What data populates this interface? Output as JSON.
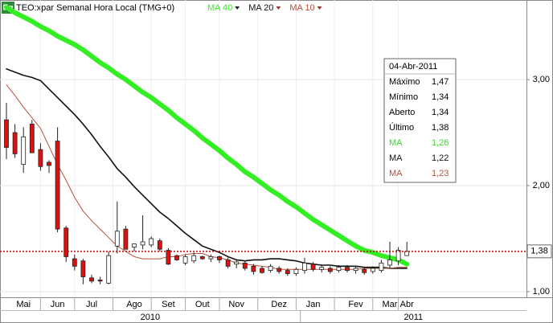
{
  "chart_data": {
    "type": "candlestick",
    "title": "TEO:xpar Semanal Hora Local (TMG+0)",
    "icon": "Eq",
    "categories": [
      null,
      null,
      "Mai",
      null,
      null,
      null,
      "Jun",
      null,
      null,
      null,
      "Jul",
      null,
      null,
      null,
      null,
      "Ago",
      null,
      null,
      null,
      "Set",
      null,
      null,
      null,
      "Out",
      null,
      null,
      null,
      "Nov",
      null,
      null,
      null,
      null,
      "Dez",
      null,
      null,
      null,
      "Jan",
      null,
      null,
      null,
      null,
      "Fev",
      null,
      null,
      null,
      "Mar",
      null,
      "Abr"
    ],
    "x_groups": [
      {
        "label": "2010",
        "from": 0,
        "to": 34
      },
      {
        "label": "2011",
        "from": 35,
        "to": 47
      }
    ],
    "open": [
      2.62,
      2.5,
      2.2,
      2.58,
      2.34,
      2.22,
      2.42,
      1.6,
      1.31,
      1.29,
      1.13,
      1.11,
      1.08,
      1.43,
      1.59,
      1.42,
      1.44,
      1.44,
      1.48,
      1.39,
      1.34,
      1.27,
      1.29,
      1.33,
      1.31,
      1.33,
      1.3,
      1.26,
      1.27,
      1.24,
      1.22,
      1.2,
      1.22,
      1.2,
      1.17,
      1.2,
      1.26,
      1.21,
      1.22,
      1.2,
      1.23,
      1.2,
      1.21,
      1.19,
      1.2,
      1.25,
      1.29,
      1.34
    ],
    "high": [
      2.78,
      2.58,
      2.55,
      2.62,
      2.4,
      2.24,
      2.55,
      1.62,
      1.35,
      1.31,
      1.16,
      1.14,
      1.38,
      1.85,
      1.62,
      1.45,
      1.72,
      1.52,
      1.5,
      1.41,
      1.35,
      1.35,
      1.37,
      1.34,
      1.35,
      1.34,
      1.32,
      1.3,
      1.29,
      1.26,
      1.24,
      1.26,
      1.24,
      1.22,
      1.23,
      1.32,
      1.28,
      1.25,
      1.24,
      1.25,
      1.25,
      1.24,
      1.23,
      1.24,
      1.3,
      1.47,
      1.42,
      1.47
    ],
    "low": [
      2.25,
      2.26,
      2.12,
      2.32,
      2.14,
      2.12,
      1.56,
      1.28,
      1.2,
      1.07,
      1.08,
      1.07,
      1.07,
      1.36,
      1.4,
      1.38,
      1.4,
      1.42,
      1.38,
      1.25,
      1.29,
      1.25,
      1.27,
      1.3,
      1.28,
      1.27,
      1.22,
      1.22,
      1.2,
      1.16,
      1.17,
      1.18,
      1.17,
      1.15,
      1.15,
      1.17,
      1.19,
      1.18,
      1.17,
      1.18,
      1.18,
      1.17,
      1.16,
      1.17,
      1.18,
      1.22,
      1.25,
      1.34
    ],
    "close": [
      2.36,
      2.3,
      2.46,
      2.31,
      2.18,
      2.19,
      1.59,
      1.33,
      1.24,
      1.14,
      1.1,
      1.1,
      1.34,
      1.57,
      1.4,
      1.45,
      1.47,
      1.5,
      1.4,
      1.26,
      1.3,
      1.33,
      1.34,
      1.31,
      1.33,
      1.3,
      1.24,
      1.28,
      1.22,
      1.19,
      1.18,
      1.24,
      1.19,
      1.17,
      1.21,
      1.27,
      1.21,
      1.23,
      1.19,
      1.23,
      1.2,
      1.22,
      1.18,
      1.22,
      1.27,
      1.3,
      1.39,
      1.38
    ],
    "up_color": "#ffffff",
    "down_color": "#e01010",
    "series": [
      {
        "name": "MA 40",
        "color": "#33ee22",
        "width": 6,
        "values": [
          3.68,
          3.63,
          3.59,
          3.55,
          3.5,
          3.46,
          3.41,
          3.37,
          3.33,
          3.28,
          3.22,
          3.16,
          3.11,
          3.05,
          3.0,
          2.94,
          2.88,
          2.83,
          2.77,
          2.71,
          2.64,
          2.58,
          2.52,
          2.45,
          2.39,
          2.33,
          2.26,
          2.2,
          2.13,
          2.08,
          2.02,
          1.96,
          1.91,
          1.85,
          1.8,
          1.74,
          1.68,
          1.63,
          1.58,
          1.53,
          1.48,
          1.43,
          1.39,
          1.37,
          1.34,
          1.32,
          1.3,
          1.26
        ]
      },
      {
        "name": "MA 20",
        "color": "#111111",
        "width": 1.6,
        "values": [
          3.1,
          3.07,
          3.04,
          3.02,
          2.99,
          2.91,
          2.83,
          2.75,
          2.67,
          2.58,
          2.48,
          2.37,
          2.27,
          2.16,
          2.08,
          1.99,
          1.91,
          1.83,
          1.75,
          1.69,
          1.62,
          1.55,
          1.49,
          1.43,
          1.4,
          1.37,
          1.33,
          1.3,
          1.29,
          1.3,
          1.3,
          1.31,
          1.31,
          1.3,
          1.29,
          1.27,
          1.26,
          1.25,
          1.25,
          1.24,
          1.24,
          1.24,
          1.23,
          1.23,
          1.23,
          1.22,
          1.22,
          1.22
        ]
      },
      {
        "name": "MA 10",
        "color": "#b5503c",
        "width": 1,
        "values": [
          2.95,
          2.85,
          2.74,
          2.64,
          2.54,
          2.37,
          2.2,
          2.05,
          1.89,
          1.76,
          1.67,
          1.59,
          1.51,
          1.43,
          1.38,
          1.33,
          1.31,
          1.31,
          1.31,
          1.33,
          1.33,
          1.35,
          1.36,
          1.36,
          1.33,
          1.32,
          1.3,
          1.27,
          1.26,
          1.25,
          1.24,
          1.23,
          1.21,
          1.21,
          1.21,
          1.21,
          1.21,
          1.21,
          1.21,
          1.21,
          1.21,
          1.21,
          1.22,
          1.22,
          1.22,
          1.22,
          1.23,
          1.23
        ]
      }
    ],
    "ylim": [
      0.947,
      3.75
    ],
    "yticks": [
      {
        "value": 1,
        "label": "1,00"
      },
      {
        "value": 2,
        "label": "2,00"
      },
      {
        "value": 3,
        "label": "3,00"
      }
    ],
    "last_price": {
      "value": 1.38,
      "label": "1,38",
      "color": "#cc0000"
    },
    "grid": true,
    "info_box": {
      "date": "04-Abr-2011",
      "rows": [
        {
          "label": "Máximo",
          "value": "1,47",
          "color": "#000000"
        },
        {
          "label": "Mínimo",
          "value": "1,34",
          "color": "#000000"
        },
        {
          "label": "Aberto",
          "value": "1,34",
          "color": "#000000"
        },
        {
          "label": "Último",
          "value": "1,38",
          "color": "#000000"
        },
        {
          "label": "MA",
          "value": "1,26",
          "color": "#33dd22"
        },
        {
          "label": "MA",
          "value": "1,22",
          "color": "#111111"
        },
        {
          "label": "MA",
          "value": "1,23",
          "color": "#b5503c"
        }
      ]
    }
  }
}
